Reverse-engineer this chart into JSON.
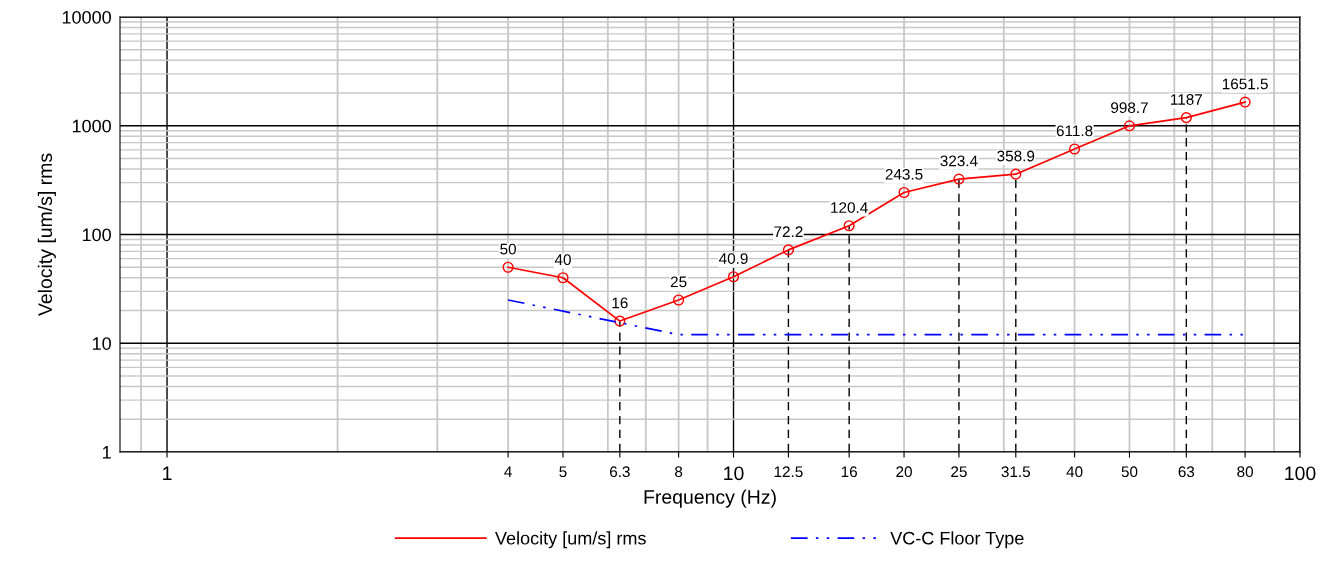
{
  "chart_data": {
    "type": "line",
    "xlabel": "Frequency (Hz)",
    "ylabel": "Velocity [um/s] rms",
    "log": "xy",
    "grid": true,
    "legend": "bottom",
    "data_labels": true,
    "xlim": [
      0.826,
      100
    ],
    "ylim": [
      1,
      10000
    ],
    "xticks": [
      1,
      4,
      5,
      6.3,
      8,
      10,
      12.5,
      16,
      20,
      25,
      31.5,
      40,
      50,
      63,
      80,
      100
    ],
    "yticks": [
      1,
      10,
      100,
      1000,
      10000
    ],
    "series": [
      {
        "name": "Velocity [um/s] rms",
        "color": "#ff0000",
        "marker": "circle",
        "line_style": "solid",
        "x": [
          4,
          5,
          6.3,
          8,
          10,
          12.5,
          16,
          20,
          25,
          31.5,
          40,
          50,
          63,
          80
        ],
        "values": [
          50,
          40,
          16,
          25,
          40.9,
          72.2,
          120.4,
          243.5,
          323.4,
          358.9,
          611.8,
          998.7,
          1187,
          1651.5
        ]
      },
      {
        "name": "VC-C Floor Type",
        "color": "#0000ff",
        "marker": "none",
        "line_style": "dashed",
        "data_labels": false,
        "x": [
          4,
          8,
          80
        ],
        "values": [
          25,
          12,
          12
        ]
      }
    ],
    "ref_lines": [
      {
        "axis": "x",
        "value": 6.3,
        "color": "#000000",
        "line_style": "dashed"
      },
      {
        "axis": "x",
        "value": 12.5,
        "color": "#000000",
        "line_style": "dashed"
      },
      {
        "axis": "x",
        "value": 16,
        "color": "#000000",
        "line_style": "dashed"
      },
      {
        "axis": "x",
        "value": 25,
        "color": "#000000",
        "line_style": "dashed"
      },
      {
        "axis": "x",
        "value": 31.5,
        "color": "#000000",
        "line_style": "dashed"
      },
      {
        "axis": "x",
        "value": 63,
        "color": "#000000",
        "line_style": "dashed"
      }
    ]
  }
}
